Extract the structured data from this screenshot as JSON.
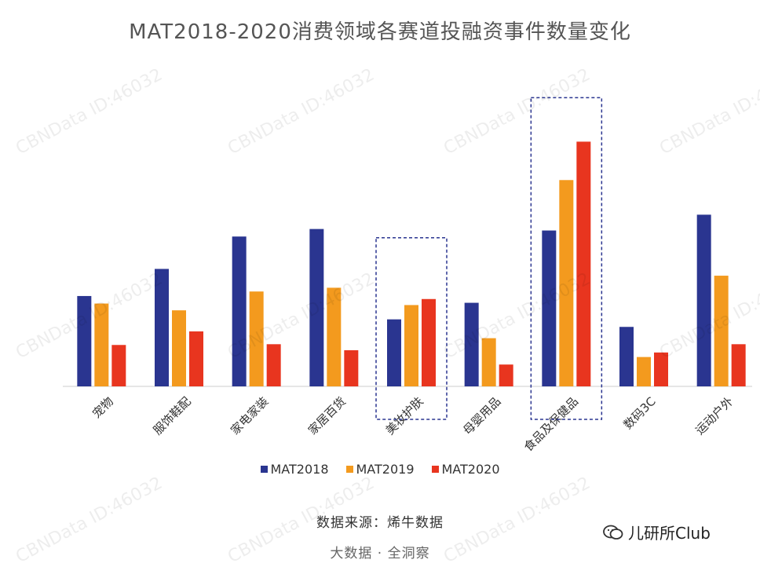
{
  "title": "MAT2018-2020消费领域各赛道投融资事件数量变化",
  "watermark": "CBNData ID:46032",
  "source": "数据来源：烯牛数据",
  "footer": "大数据 · 全洞察",
  "brand": "儿研所Club",
  "chart_data": {
    "type": "bar",
    "categories": [
      "宠物",
      "服饰鞋配",
      "家电家装",
      "家居百货",
      "美妆护肤",
      "母婴用品",
      "食品及保健品",
      "数码3C",
      "运动户外"
    ],
    "series": [
      {
        "name": "MAT2018",
        "color": "#2a3590",
        "values": [
          120,
          156,
          199,
          209,
          89,
          111,
          207,
          79,
          228
        ]
      },
      {
        "name": "MAT2019",
        "color": "#f39a1e",
        "values": [
          110,
          101,
          126,
          131,
          108,
          64,
          274,
          39,
          147
        ]
      },
      {
        "name": "MAT2020",
        "color": "#e8351f",
        "values": [
          55,
          73,
          56,
          48,
          116,
          29,
          325,
          45,
          56
        ]
      }
    ],
    "highlighted_categories": [
      "美妆护肤",
      "食品及保健品"
    ],
    "ylim": [
      0,
      340
    ],
    "grid": false,
    "y_axis_shown": false,
    "legend_position": "bottom"
  }
}
